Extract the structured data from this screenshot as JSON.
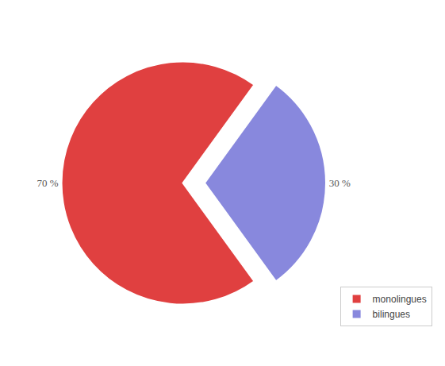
{
  "chart_data": {
    "type": "pie",
    "categories": [
      "monolingues",
      "bilingues"
    ],
    "values": [
      70,
      30
    ],
    "value_labels": [
      "70 %",
      "30 %"
    ],
    "colors": [
      "#e04040",
      "#8888dd"
    ],
    "data_labels": true,
    "legend": "lower right"
  }
}
